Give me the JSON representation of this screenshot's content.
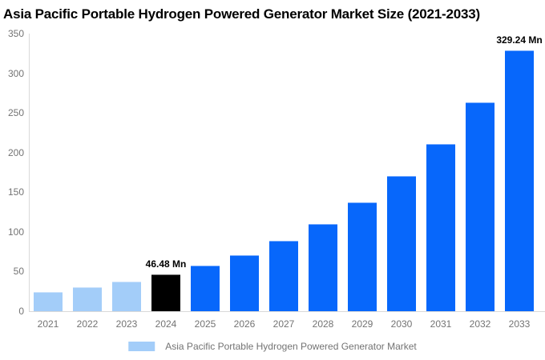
{
  "title": "Asia Pacific Portable Hydrogen Powered Generator Market Size (2021-2033)",
  "colors": {
    "historical_bar": "#a3cdf9",
    "current_bar": "#000000",
    "forecast_bar": "#0767fb",
    "axis_line": "#d9d9d9",
    "tick_text": "#737373",
    "title_text": "#000000",
    "annotation_text": "#000000",
    "background": "#ffffff"
  },
  "chart_data": {
    "type": "bar",
    "title": "Asia Pacific Portable Hydrogen Powered Generator Market Size (2021-2033)",
    "categories": [
      "2021",
      "2022",
      "2023",
      "2024",
      "2025",
      "2026",
      "2027",
      "2028",
      "2029",
      "2030",
      "2031",
      "2032",
      "2033"
    ],
    "values": [
      24,
      30,
      37,
      46.48,
      58,
      71,
      89,
      110,
      137,
      170,
      211,
      263,
      329.24
    ],
    "unit": "Mn",
    "point_styles": [
      "historical",
      "historical",
      "historical",
      "current",
      "forecast",
      "forecast",
      "forecast",
      "forecast",
      "forecast",
      "forecast",
      "forecast",
      "forecast",
      "forecast"
    ],
    "palette": {
      "historical": "#a3cdf9",
      "current": "#000000",
      "forecast": "#0767fb"
    },
    "annotations": [
      {
        "index": 3,
        "text": "46.48 Mn"
      },
      {
        "index": 12,
        "text": "329.24 Mn"
      }
    ],
    "xlabel": "",
    "ylabel": "",
    "ylim": [
      0,
      350
    ],
    "yticks": [
      0,
      50,
      100,
      150,
      200,
      250,
      300,
      350
    ],
    "grid": false,
    "legend_position": "bottom",
    "legend": {
      "label": "Asia Pacific Portable Hydrogen Powered Generator Market",
      "swatch_color": "#a3cdf9"
    }
  }
}
